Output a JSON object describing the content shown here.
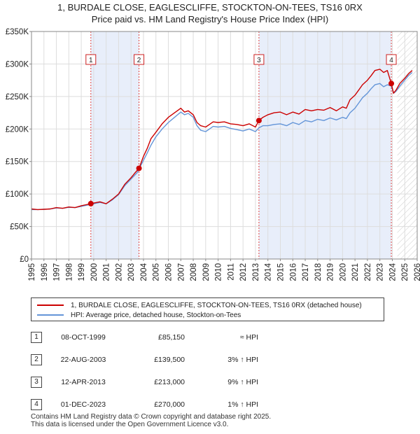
{
  "chart_data": {
    "type": "line",
    "title": [
      "1, BURDALE CLOSE, EAGLESCLIFFE, STOCKTON-ON-TEES, TS16 0RX",
      "Price paid vs. HM Land Registry's House Price Index (HPI)"
    ],
    "xlabel": "",
    "ylabel": "",
    "xlim": [
      1995,
      2026
    ],
    "ylim": [
      0,
      350000
    ],
    "x_ticks": [
      "1995",
      "1996",
      "1997",
      "1998",
      "1999",
      "2000",
      "2001",
      "2002",
      "2003",
      "2004",
      "2005",
      "2006",
      "2007",
      "2008",
      "2009",
      "2010",
      "2011",
      "2012",
      "2013",
      "2014",
      "2015",
      "2016",
      "2017",
      "2018",
      "2019",
      "2020",
      "2021",
      "2022",
      "2023",
      "2024",
      "2025",
      "2026"
    ],
    "y_ticks": [
      {
        "value": 0,
        "label": "£0"
      },
      {
        "value": 50000,
        "label": "£50K"
      },
      {
        "value": 100000,
        "label": "£100K"
      },
      {
        "value": 150000,
        "label": "£150K"
      },
      {
        "value": 200000,
        "label": "£200K"
      },
      {
        "value": 250000,
        "label": "£250K"
      },
      {
        "value": 300000,
        "label": "£300K"
      },
      {
        "value": 350000,
        "label": "£350K"
      }
    ],
    "grid": true,
    "legend_position": "bottom",
    "series": [
      {
        "name": "1, BURDALE CLOSE, EAGLESCLIFFE, STOCKTON-ON-TEES, TS16 0RX (detached house)",
        "color": "#cc0000",
        "x": [
          1995.0,
          1995.5,
          1996.0,
          1996.5,
          1997.0,
          1997.5,
          1998.0,
          1998.5,
          1999.0,
          1999.5,
          1999.77,
          2000.0,
          2000.5,
          2001.0,
          2001.5,
          2002.0,
          2002.5,
          2003.0,
          2003.3,
          2003.64,
          2004.0,
          2004.3,
          2004.6,
          2005.0,
          2005.5,
          2006.0,
          2006.5,
          2007.0,
          2007.3,
          2007.6,
          2008.0,
          2008.3,
          2008.6,
          2009.0,
          2009.3,
          2009.6,
          2010.0,
          2010.5,
          2011.0,
          2011.5,
          2012.0,
          2012.5,
          2013.0,
          2013.28,
          2013.6,
          2014.0,
          2014.5,
          2015.0,
          2015.5,
          2016.0,
          2016.5,
          2017.0,
          2017.5,
          2018.0,
          2018.5,
          2019.0,
          2019.5,
          2020.0,
          2020.3,
          2020.6,
          2021.0,
          2021.3,
          2021.6,
          2022.0,
          2022.3,
          2022.6,
          2023.0,
          2023.3,
          2023.6,
          2023.92,
          2024.1,
          2024.3,
          2024.6,
          2025.0,
          2025.3,
          2025.6
        ],
        "values": [
          77000,
          76000,
          76500,
          77000,
          79000,
          78000,
          80000,
          79000,
          82000,
          84000,
          85150,
          86000,
          88000,
          85000,
          92000,
          100000,
          115000,
          125000,
          132000,
          139500,
          158000,
          170000,
          185000,
          195000,
          208000,
          218000,
          225000,
          232000,
          226000,
          228000,
          222000,
          210000,
          205000,
          203000,
          207000,
          211000,
          210000,
          211000,
          208000,
          207000,
          205000,
          208000,
          203000,
          213000,
          218000,
          222000,
          225000,
          226000,
          222000,
          226000,
          223000,
          230000,
          228000,
          230000,
          229000,
          233000,
          228000,
          234000,
          232000,
          245000,
          252000,
          260000,
          268000,
          275000,
          282000,
          290000,
          292000,
          287000,
          290000,
          270000,
          255000,
          260000,
          270000,
          278000,
          285000,
          290000
        ]
      },
      {
        "name": "HPI: Average price, detached house, Stockton-on-Tees",
        "color": "#6495d8",
        "x": [
          1995.0,
          1995.5,
          1996.0,
          1996.5,
          1997.0,
          1997.5,
          1998.0,
          1998.5,
          1999.0,
          1999.5,
          2000.0,
          2000.5,
          2001.0,
          2001.5,
          2002.0,
          2002.5,
          2003.0,
          2003.5,
          2004.0,
          2004.3,
          2004.6,
          2005.0,
          2005.5,
          2006.0,
          2006.5,
          2007.0,
          2007.3,
          2007.6,
          2008.0,
          2008.3,
          2008.6,
          2009.0,
          2009.3,
          2009.6,
          2010.0,
          2010.5,
          2011.0,
          2011.5,
          2012.0,
          2012.5,
          2013.0,
          2013.3,
          2013.6,
          2014.0,
          2014.5,
          2015.0,
          2015.5,
          2016.0,
          2016.5,
          2017.0,
          2017.5,
          2018.0,
          2018.5,
          2019.0,
          2019.5,
          2020.0,
          2020.3,
          2020.6,
          2021.0,
          2021.3,
          2021.6,
          2022.0,
          2022.3,
          2022.6,
          2023.0,
          2023.3,
          2023.6,
          2023.92,
          2024.1,
          2024.3,
          2024.6,
          2025.0,
          2025.3,
          2025.6
        ],
        "values": [
          76000,
          76000,
          76500,
          77000,
          78500,
          78000,
          79500,
          79000,
          81000,
          83000,
          85000,
          87000,
          85000,
          91000,
          99000,
          113000,
          123000,
          133000,
          152000,
          163000,
          175000,
          188000,
          200000,
          210000,
          218000,
          226000,
          222000,
          224000,
          218000,
          205000,
          198000,
          196000,
          200000,
          204000,
          203000,
          204000,
          201000,
          199000,
          197000,
          200000,
          196000,
          202000,
          205000,
          205000,
          207000,
          208000,
          205000,
          210000,
          207000,
          213000,
          211000,
          215000,
          213000,
          217000,
          214000,
          218000,
          216000,
          225000,
          232000,
          240000,
          248000,
          255000,
          262000,
          268000,
          270000,
          265000,
          268000,
          266000,
          255000,
          258000,
          266000,
          275000,
          282000,
          287000
        ]
      }
    ],
    "sales": [
      {
        "label": "1",
        "x": 1999.77,
        "value": 85150
      },
      {
        "label": "2",
        "x": 2003.64,
        "value": 139500
      },
      {
        "label": "3",
        "x": 2013.28,
        "value": 213000
      },
      {
        "label": "4",
        "x": 2023.92,
        "value": 270000
      }
    ],
    "shaded_regions": [
      [
        1999.77,
        2003.64
      ],
      [
        2013.28,
        2023.92
      ]
    ],
    "future_hatch_start": 2024.4
  },
  "legend": {
    "property_label": "1, BURDALE CLOSE, EAGLESCLIFFE, STOCKTON-ON-TEES, TS16 0RX (detached house)",
    "hpi_label": "HPI: Average price, detached house, Stockton-on-Tees",
    "property_color": "#cc0000",
    "hpi_color": "#6495d8"
  },
  "sales_table": [
    {
      "num": "1",
      "date": "08-OCT-1999",
      "price": "£85,150",
      "hpi": "≈ HPI"
    },
    {
      "num": "2",
      "date": "22-AUG-2003",
      "price": "£139,500",
      "hpi": "3% ↑ HPI"
    },
    {
      "num": "3",
      "date": "12-APR-2013",
      "price": "£213,000",
      "hpi": "9% ↑ HPI"
    },
    {
      "num": "4",
      "date": "01-DEC-2023",
      "price": "£270,000",
      "hpi": "1% ↑ HPI"
    }
  ],
  "footer": {
    "line1": "Contains HM Land Registry data © Crown copyright and database right 2025.",
    "line2": "This data is licensed under the Open Government Licence v3.0."
  }
}
